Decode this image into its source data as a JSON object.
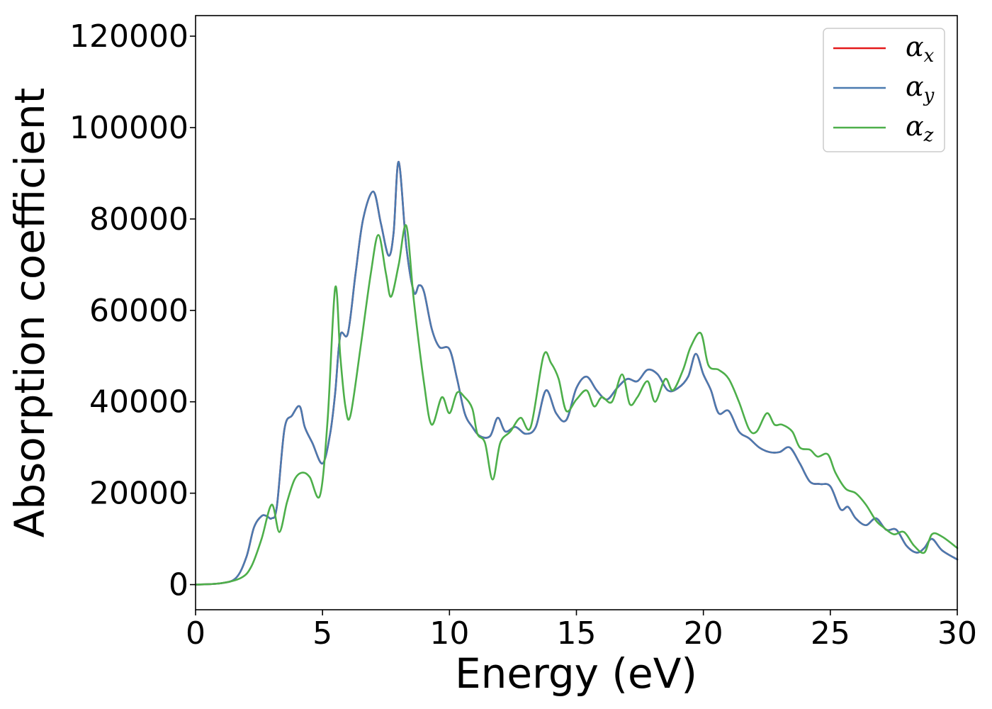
{
  "chart_data": {
    "type": "line",
    "title": "",
    "xlabel": "Energy (eV)",
    "ylabel": "Absorption coefficient",
    "xlim": [
      0,
      30
    ],
    "ylim": [
      -5500,
      124500
    ],
    "xticks": [
      0,
      5,
      10,
      15,
      20,
      25,
      30
    ],
    "xtick_labels": [
      "0",
      "5",
      "10",
      "15",
      "20",
      "25",
      "30"
    ],
    "yticks": [
      0,
      20000,
      40000,
      60000,
      80000,
      100000,
      120000
    ],
    "ytick_labels": [
      "0",
      "20000",
      "40000",
      "60000",
      "80000",
      "100000",
      "120000"
    ],
    "grid": false,
    "legend_position": "top-right",
    "series": [
      {
        "name": "αx",
        "symbol": "α",
        "sub": "x",
        "color": "#e41a1c",
        "x": [
          0,
          1,
          1.6,
          2,
          2.3,
          2.6,
          2.8,
          3.0,
          3.2,
          3.5,
          3.8,
          4.1,
          4.3,
          4.6,
          5.0,
          5.3,
          5.5,
          5.7,
          6.0,
          6.3,
          6.6,
          7.0,
          7.3,
          7.6,
          7.8,
          8.0,
          8.3,
          8.6,
          8.8,
          9.0,
          9.3,
          9.6,
          10.0,
          10.3,
          10.6,
          10.9,
          11.2,
          11.6,
          11.9,
          12.2,
          12.6,
          13.0,
          13.4,
          13.8,
          14.2,
          14.6,
          15.0,
          15.4,
          15.8,
          16.2,
          16.6,
          17.0,
          17.4,
          17.8,
          18.2,
          18.6,
          19.0,
          19.4,
          19.7,
          20.0,
          20.3,
          20.6,
          21.0,
          21.4,
          21.8,
          22.2,
          22.6,
          23.0,
          23.4,
          23.8,
          24.2,
          24.6,
          25.0,
          25.4,
          25.7,
          26.0,
          26.4,
          26.8,
          27.2,
          27.6,
          28.0,
          28.4,
          28.7,
          29.0,
          29.4,
          30.0
        ],
        "values": [
          0,
          300,
          1500,
          6000,
          12500,
          15000,
          15000,
          14500,
          17000,
          34000,
          37000,
          39000,
          34500,
          31000,
          26500,
          33000,
          42000,
          54500,
          55000,
          68000,
          80000,
          86000,
          79000,
          72000,
          77000,
          92500,
          74000,
          64000,
          65500,
          64000,
          56000,
          52000,
          51500,
          45000,
          37500,
          34500,
          32500,
          32500,
          36500,
          33500,
          34500,
          33000,
          34500,
          42500,
          37500,
          36000,
          43000,
          45500,
          42500,
          40500,
          43000,
          45000,
          44500,
          47000,
          46000,
          42500,
          43000,
          45500,
          50500,
          46000,
          42500,
          37500,
          38000,
          33500,
          32000,
          30000,
          29000,
          29000,
          30000,
          26500,
          22500,
          22000,
          21500,
          16500,
          17000,
          14500,
          13000,
          14500,
          12000,
          12000,
          8500,
          7000,
          8000,
          10000,
          7500,
          5500
        ]
      },
      {
        "name": "αy",
        "symbol": "α",
        "sub": "y",
        "color": "#4a7ab0",
        "x": [
          0,
          1,
          1.6,
          2,
          2.3,
          2.6,
          2.8,
          3.0,
          3.2,
          3.5,
          3.8,
          4.1,
          4.3,
          4.6,
          5.0,
          5.3,
          5.5,
          5.7,
          6.0,
          6.3,
          6.6,
          7.0,
          7.3,
          7.6,
          7.8,
          8.0,
          8.3,
          8.6,
          8.8,
          9.0,
          9.3,
          9.6,
          10.0,
          10.3,
          10.6,
          10.9,
          11.2,
          11.6,
          11.9,
          12.2,
          12.6,
          13.0,
          13.4,
          13.8,
          14.2,
          14.6,
          15.0,
          15.4,
          15.8,
          16.2,
          16.6,
          17.0,
          17.4,
          17.8,
          18.2,
          18.6,
          19.0,
          19.4,
          19.7,
          20.0,
          20.3,
          20.6,
          21.0,
          21.4,
          21.8,
          22.2,
          22.6,
          23.0,
          23.4,
          23.8,
          24.2,
          24.6,
          25.0,
          25.4,
          25.7,
          26.0,
          26.4,
          26.8,
          27.2,
          27.6,
          28.0,
          28.4,
          28.7,
          29.0,
          29.4,
          30.0
        ],
        "values": [
          0,
          300,
          1500,
          6000,
          12500,
          15000,
          15000,
          14500,
          17000,
          34000,
          37000,
          39000,
          34500,
          31000,
          26500,
          33000,
          42000,
          54500,
          55000,
          68000,
          80000,
          86000,
          79000,
          72000,
          77000,
          92500,
          74000,
          64000,
          65500,
          64000,
          56000,
          52000,
          51500,
          45000,
          37500,
          34500,
          32500,
          32500,
          36500,
          33500,
          34500,
          33000,
          34500,
          42500,
          37500,
          36000,
          43000,
          45500,
          42500,
          40500,
          43000,
          45000,
          44500,
          47000,
          46000,
          42500,
          43000,
          45500,
          50500,
          46000,
          42500,
          37500,
          38000,
          33500,
          32000,
          30000,
          29000,
          29000,
          30000,
          26500,
          22500,
          22000,
          21500,
          16500,
          17000,
          14500,
          13000,
          14500,
          12000,
          12000,
          8500,
          7000,
          8000,
          10000,
          7500,
          5500
        ]
      },
      {
        "name": "αz",
        "symbol": "α",
        "sub": "z",
        "color": "#4daf4a",
        "x": [
          0,
          1,
          1.8,
          2.2,
          2.6,
          3.0,
          3.3,
          3.6,
          3.9,
          4.2,
          4.5,
          4.9,
          5.2,
          5.5,
          5.7,
          5.9,
          6.1,
          6.5,
          6.9,
          7.2,
          7.5,
          7.7,
          8.0,
          8.3,
          8.6,
          9.0,
          9.3,
          9.7,
          10.0,
          10.3,
          10.6,
          10.9,
          11.1,
          11.4,
          11.7,
          12.0,
          12.4,
          12.8,
          13.2,
          13.7,
          14.0,
          14.3,
          14.6,
          15.0,
          15.4,
          15.7,
          16.0,
          16.4,
          16.8,
          17.1,
          17.4,
          17.8,
          18.1,
          18.5,
          18.8,
          19.2,
          19.5,
          19.9,
          20.2,
          20.6,
          21.0,
          21.4,
          21.8,
          22.1,
          22.5,
          22.8,
          23.1,
          23.5,
          23.8,
          24.2,
          24.5,
          24.9,
          25.2,
          25.6,
          26.0,
          26.4,
          26.8,
          27.1,
          27.5,
          27.9,
          28.3,
          28.7,
          29.0,
          29.4,
          30.0
        ],
        "values": [
          0,
          300,
          1500,
          4000,
          10000,
          17500,
          11500,
          18000,
          23000,
          24500,
          23500,
          19500,
          36000,
          65000,
          50000,
          39000,
          37000,
          52000,
          68000,
          76500,
          68000,
          63000,
          70000,
          78500,
          62000,
          44000,
          35000,
          41000,
          37500,
          42000,
          41000,
          38500,
          33000,
          31000,
          23000,
          31000,
          33500,
          36500,
          34500,
          50000,
          48500,
          45000,
          38000,
          40500,
          42500,
          39000,
          41000,
          40000,
          46000,
          39500,
          41000,
          44500,
          40000,
          45000,
          42500,
          47000,
          52000,
          55000,
          48000,
          47000,
          45000,
          40000,
          34000,
          33500,
          37500,
          35000,
          35000,
          33500,
          30000,
          29500,
          28000,
          28500,
          24500,
          21000,
          20000,
          17500,
          14000,
          12500,
          11000,
          11500,
          8500,
          7000,
          11000,
          10500,
          8000
        ]
      }
    ]
  }
}
